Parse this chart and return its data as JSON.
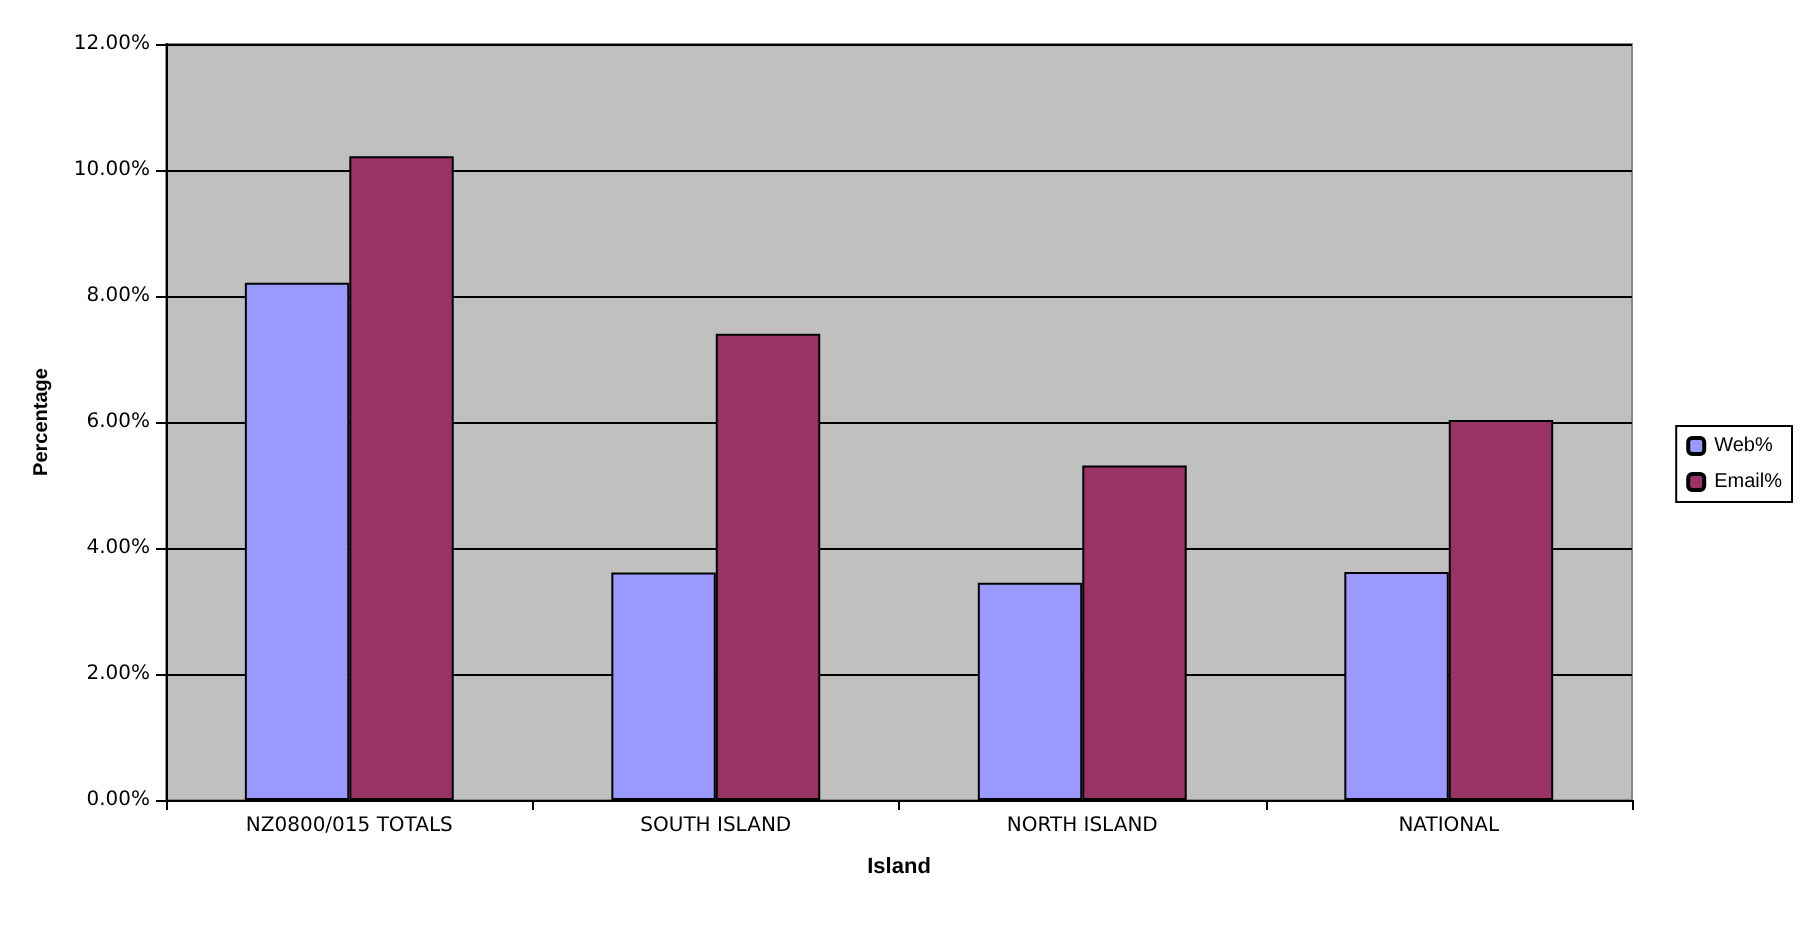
{
  "chart_data": {
    "type": "bar",
    "xlabel": "Island",
    "ylabel": "Percentage",
    "categories": [
      "NZ0800/015 TOTALS",
      "SOUTH ISLAND",
      "NORTH ISLAND",
      "NATIONAL"
    ],
    "series": [
      {
        "name": "Web%",
        "color": "#9999ff",
        "values": [
          8.21,
          3.61,
          3.45,
          3.62
        ]
      },
      {
        "name": "Email%",
        "color": "#993366",
        "values": [
          10.22,
          7.4,
          5.31,
          6.03
        ]
      }
    ],
    "ylim": [
      0,
      12
    ],
    "yticks": [
      {
        "value": 0,
        "label": "0.00%"
      },
      {
        "value": 2,
        "label": "2.00%"
      },
      {
        "value": 4,
        "label": "4.00%"
      },
      {
        "value": 6,
        "label": "6.00%"
      },
      {
        "value": 8,
        "label": "8.00%"
      },
      {
        "value": 10,
        "label": "10.00%"
      },
      {
        "value": 12,
        "label": "12.00%"
      }
    ],
    "grid": "y",
    "legend": "right"
  }
}
